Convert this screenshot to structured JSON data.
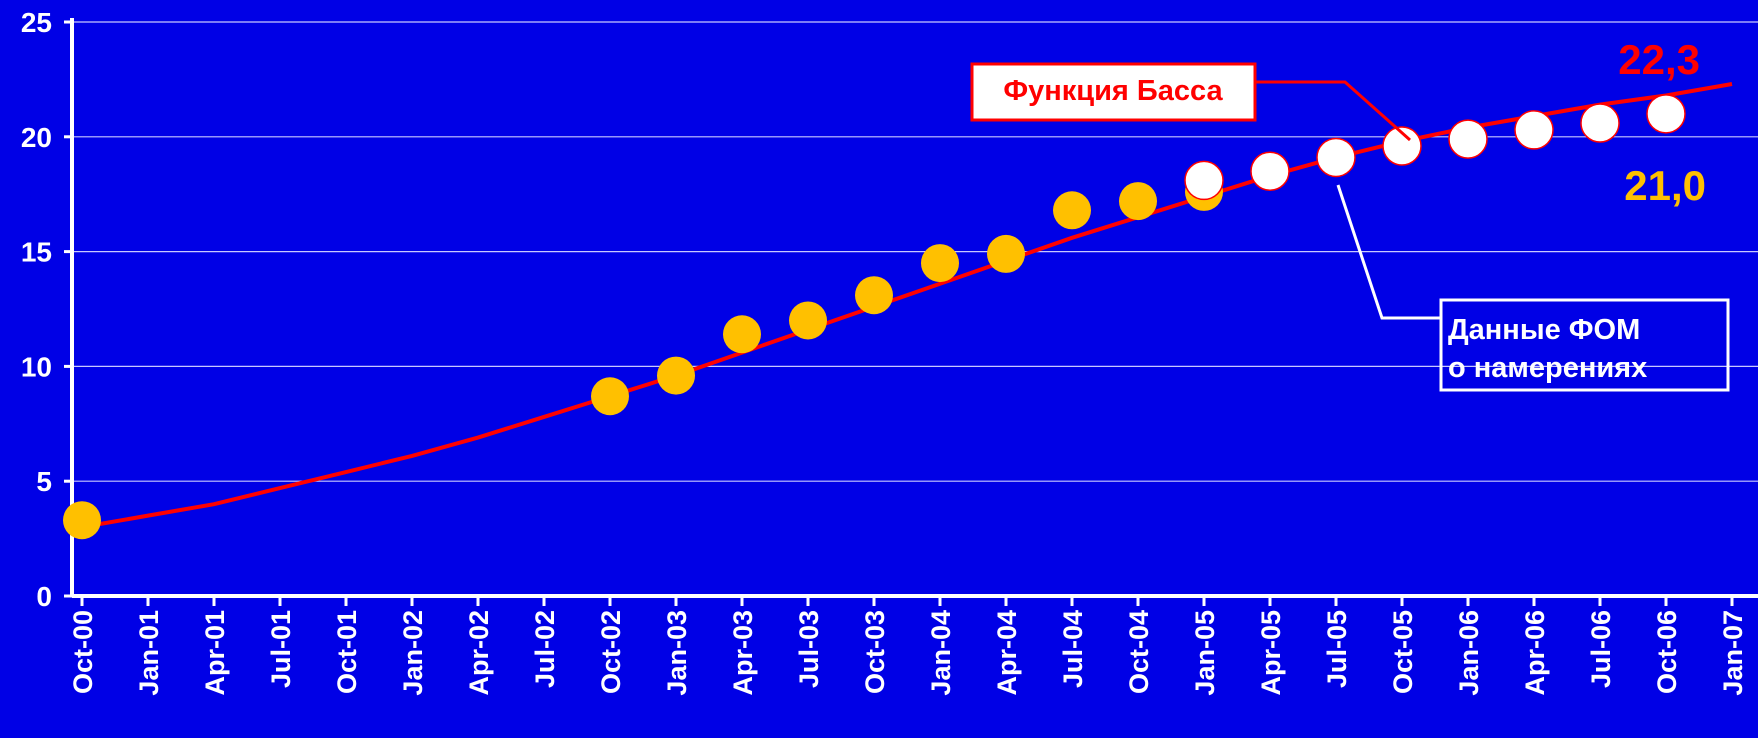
{
  "chart_data": {
    "type": "line",
    "categories": [
      "Oct-00",
      "Jan-01",
      "Apr-01",
      "Jul-01",
      "Oct-01",
      "Jan-02",
      "Apr-02",
      "Jul-02",
      "Oct-02",
      "Jan-03",
      "Apr-03",
      "Jul-03",
      "Oct-03",
      "Jan-04",
      "Apr-04",
      "Jul-04",
      "Oct-04",
      "Jan-05",
      "Apr-05",
      "Jul-05",
      "Oct-05",
      "Jan-06",
      "Apr-06",
      "Jul-06",
      "Oct-06",
      "Jan-07"
    ],
    "series": [
      {
        "kind": "line",
        "color": "#ff0000",
        "values": [
          3.0,
          3.5,
          4.0,
          4.7,
          5.4,
          6.1,
          6.9,
          7.8,
          8.7,
          9.6,
          10.6,
          11.6,
          12.6,
          13.6,
          14.6,
          15.6,
          16.5,
          17.4,
          18.3,
          19.1,
          19.8,
          20.4,
          20.9,
          21.4,
          21.8,
          22.3
        ],
        "value_labels": [
          null,
          null,
          null,
          null,
          null,
          null,
          null,
          null,
          null,
          null,
          null,
          null,
          null,
          null,
          null,
          null,
          null,
          null,
          null,
          null,
          null,
          null,
          null,
          null,
          null,
          "22,3"
        ]
      },
      {
        "kind": "dots",
        "color": "#ffc000",
        "values": [
          3.3,
          null,
          null,
          null,
          null,
          null,
          null,
          null,
          8.7,
          9.6,
          11.4,
          12.0,
          13.1,
          14.5,
          14.9,
          16.8,
          17.2,
          17.6,
          null,
          null,
          null,
          null,
          null,
          null,
          null,
          null
        ]
      },
      {
        "kind": "dots",
        "color": "#ffffff",
        "values": [
          null,
          null,
          null,
          null,
          null,
          null,
          null,
          null,
          null,
          null,
          null,
          null,
          null,
          null,
          null,
          null,
          null,
          18.1,
          18.5,
          19.1,
          19.6,
          19.9,
          20.3,
          20.6,
          21.0,
          null
        ],
        "value_labels": [
          null,
          null,
          null,
          null,
          null,
          null,
          null,
          null,
          null,
          null,
          null,
          null,
          null,
          null,
          null,
          null,
          null,
          null,
          null,
          null,
          null,
          null,
          null,
          null,
          "21,0",
          null
        ]
      }
    ],
    "annotations": [
      "Функция Басса",
      "Данные ФОМ",
      "о намерениях"
    ],
    "ylim": [
      0,
      25
    ],
    "yticks": [
      0,
      5,
      10,
      15,
      20,
      25
    ],
    "grid": true
  }
}
